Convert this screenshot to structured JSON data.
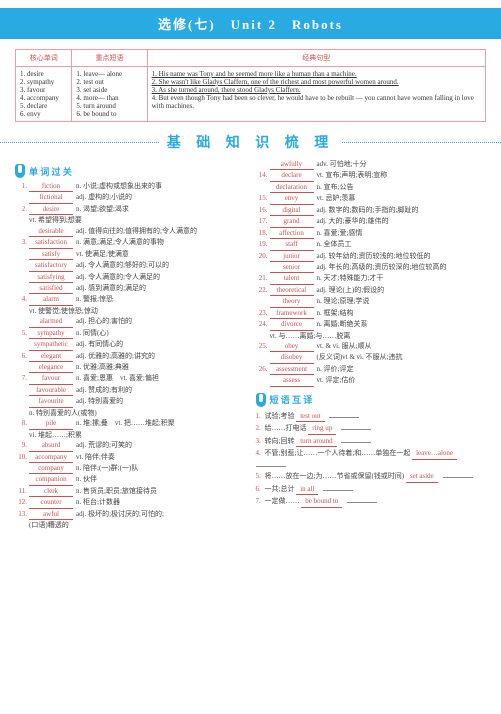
{
  "header": "选修(七)　Unit 2　Robots",
  "table": {
    "headers": [
      "核心单词",
      "重点短语",
      "经典句型"
    ],
    "core_words": [
      "1. desire",
      "2. sympathy",
      "3. favour",
      "4. accompany",
      "5. declare",
      "6. envy"
    ],
    "phrases": [
      "1. leave— alone",
      "2. test out",
      "3. set aside",
      "4. more— than",
      "5. turn around",
      "6. be bound to"
    ],
    "sentences": [
      "1. His name was Tony and he seemed more like a human than a machine.",
      "2. She wasn't like Gladys Claffern, one of the richest and most powerful women around.",
      "3. As she turned around, there stood Gladys Claffern.",
      "4. But even though Tony had been so clever, he would have to be rebuilt — you cannot have women falling in love with machines."
    ]
  },
  "section_title": "基 础 知 识 梳 理",
  "sub1": "单 词 过 关",
  "sub2": "短 语 互 译",
  "left": [
    {
      "n": "1.",
      "w": "fiction",
      "d": "n. 小说;虚构或想象出来的事"
    },
    {
      "w": "fictional",
      "d": "adj. 虚构的;小说的"
    },
    {
      "n": "2.",
      "w": "desire",
      "d": "n. 渴望;欲望;渴求"
    },
    {
      "d2": "vt. 希望得到;想要"
    },
    {
      "w": "desirable",
      "d": "adj. 值得向往的;值得拥有的;令人满意的"
    },
    {
      "n": "3.",
      "w": "satisfaction",
      "d": "n. 满意;满足;令人满意的事物"
    },
    {
      "w": "satisfy",
      "d": "vt. 使满足;使满意"
    },
    {
      "w": "satisfactory",
      "d": "adj. 令人满意的;够好的;可以的"
    },
    {
      "w": "satisfying",
      "d": "adj. 令人满意的;令人满足的"
    },
    {
      "w": "satisfied",
      "d": "adj. 感到满意的;满足的"
    },
    {
      "n": "4.",
      "w": "alarm",
      "d": "n. 警报;惊恐"
    },
    {
      "d2": "vt. 使警觉;使惊恐;惊动"
    },
    {
      "w": "alarmed",
      "d": "adj. 担心的;害怕的"
    },
    {
      "n": "5.",
      "w": "sympathy",
      "d": "n. 同情(心)"
    },
    {
      "w": "sympathetic",
      "d": "adj. 有同情心的"
    },
    {
      "n": "6.",
      "w": "elegant",
      "d": "adj. 优雅的;高雅的;讲究的"
    },
    {
      "w": "elegance",
      "d": "n. 优雅;高雅;典雅"
    },
    {
      "n": "7.",
      "w": "favour",
      "d": "n. 喜爱;恩惠　vt. 喜爱;偏袒"
    },
    {
      "w": "favourable",
      "d": "adj. 赞成的;有利的"
    },
    {
      "w": "favourite",
      "d": "adj. 特别喜爱的"
    },
    {
      "d2": "n. 特别喜爱的人(或物)"
    },
    {
      "n": "8.",
      "w": "pile",
      "d": "n. 堆;摞;叠　vt. 把……堆起;积聚"
    },
    {
      "d2": "vi. 堆起……;积累"
    },
    {
      "n": "9.",
      "w": "absurd",
      "d": "adj. 荒谬的;可笑的"
    },
    {
      "n": "10.",
      "w": "accompany",
      "d": "vt. 陪伴;伴奏"
    },
    {
      "w": "company",
      "d": "n. 陪伴;(一)群;(一)队"
    },
    {
      "w": "companion",
      "d": "n. 伙伴"
    },
    {
      "n": "11.",
      "w": "clerk",
      "d": "n. 售货员;职员;旅馆接待员"
    },
    {
      "n": "12.",
      "w": "counter",
      "d": "n. 柜台;计数器"
    },
    {
      "n": "13.",
      "w": "awful",
      "d": "adj. 极坏的;极讨厌的;可怕的;"
    },
    {
      "d2": "(口语)糟透的"
    }
  ],
  "right": [
    {
      "w": "awfully",
      "d": "adv. 可怕地;十分"
    },
    {
      "n": "14.",
      "w": "declare",
      "d": "vt. 宣布;声明;表明;宣称"
    },
    {
      "w": "declaration",
      "d": "n. 宣布;公告"
    },
    {
      "n": "15.",
      "w": "envy",
      "d": "vt. 忌妒;羡慕"
    },
    {
      "n": "16.",
      "w": "digital",
      "d": "adj. 数字的;数码的;手指的;脚趾的"
    },
    {
      "n": "17.",
      "w": "grand",
      "d": "adj. 大的;豪华的;雄伟的"
    },
    {
      "n": "18.",
      "w": "affection",
      "d": "n. 喜爱;爱;感情"
    },
    {
      "n": "19.",
      "w": "staff",
      "d": "n. 全体员工"
    },
    {
      "n": "20.",
      "w": "junior",
      "d": "adj. 较年幼的;资历较浅的;地位较低的"
    },
    {
      "w": "senior",
      "d": "adj. 年长的;高级的;资历较深的;地位较高的"
    },
    {
      "n": "21.",
      "w": "talent",
      "d": "n. 天才;特殊能力;才干"
    },
    {
      "n": "22.",
      "w": "theoretical",
      "d": "adj. 理论(上)的;假设的"
    },
    {
      "w": "theory",
      "d": "n. 理论;原理;学说"
    },
    {
      "n": "23.",
      "w": "framework",
      "d": "n. 框架;结构"
    },
    {
      "n": "24.",
      "w": "divorce",
      "d": "n. 离婚;断绝关系"
    },
    {
      "d2": "vt. 与……离婚;与……脱离"
    },
    {
      "n": "25.",
      "w": "obey",
      "d": "vt. & vi. 服从;顺从"
    },
    {
      "w": "disobey",
      "d": "(反义词)vt & vi. 不服从;违抗"
    },
    {
      "n": "26.",
      "w": "assessment",
      "d": "n. 评价;评定"
    },
    {
      "w": "assess",
      "d": "vt. 评定;估价"
    }
  ],
  "phrases_bottom": [
    {
      "n": "1.",
      "t": "试验;考验",
      "w": "test out"
    },
    {
      "n": "2.",
      "t": "给……打电话",
      "w": "ring up"
    },
    {
      "n": "3.",
      "t": "转向;回转",
      "w": "turn around"
    },
    {
      "n": "4.",
      "t": "不管;别惹;让……一个人待着;和……单独在一起",
      "w": "leave…alone"
    },
    {
      "n": "5.",
      "t": "将……放在一边;为……节省或保留(钱或时间)",
      "w": "set aside"
    },
    {
      "n": "6.",
      "t": "一共;总计",
      "w": "in all"
    },
    {
      "n": "7.",
      "t": "一定做……",
      "w": "be bound to"
    }
  ]
}
